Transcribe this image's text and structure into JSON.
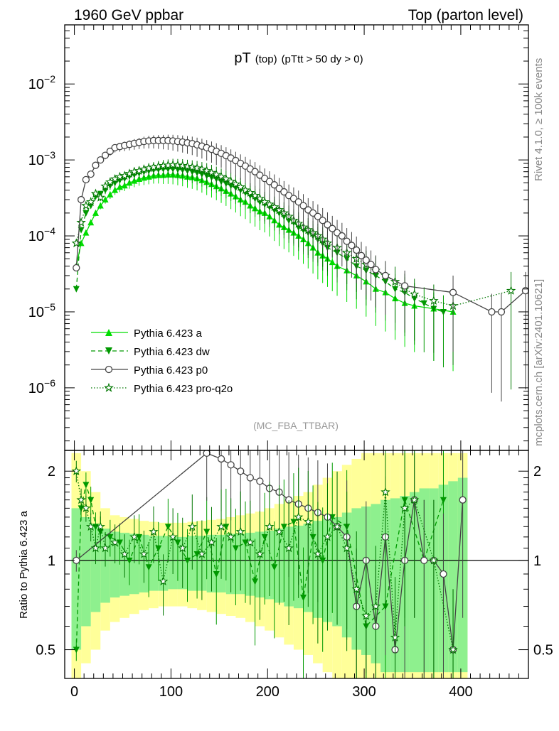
{
  "header": {
    "left": "1960 GeV ppbar",
    "right": "Top (parton level)"
  },
  "side_text": {
    "rivet": "Rivet 4.1.0, ≥ 100k events",
    "mcplots": "mcplots.cern.ch [arXiv:2401.10621]"
  },
  "colors": {
    "p_a": "#00dd00",
    "p_dw": "#009900",
    "p_p0": "#444444",
    "p_q2o": "#007700",
    "band_inner": "#8ef08e",
    "band_outer": "#ffff99"
  },
  "chart_data": [
    {
      "type": "line",
      "title": "pT (top) (pTtt > 50 dy > 0)",
      "title_parts": {
        "main": "pT",
        "sub": "(top)",
        "cut": "(pTtt > 50 dy > 0)"
      },
      "analysis_label": "(MC_FBA_TTBAR)",
      "xlabel": "",
      "ylabel": "",
      "y_scale": "log",
      "xlim": [
        -10,
        470
      ],
      "ylim": [
        1.5e-07,
        0.06
      ],
      "y_ticks": [
        {
          "value": 1e-06,
          "label_base": "10",
          "label_exp": "−6"
        },
        {
          "value": 1e-05,
          "label_base": "10",
          "label_exp": "−5"
        },
        {
          "value": 0.0001,
          "label_base": "10",
          "label_exp": "−4"
        },
        {
          "value": 0.001,
          "label_base": "10",
          "label_exp": "−3"
        },
        {
          "value": 0.01,
          "label_base": "10",
          "label_exp": "−2"
        }
      ],
      "legend_position": "lower-left",
      "series": [
        {
          "name": "Pythia 6.423 a",
          "style": "a",
          "x": [
            2,
            7,
            12,
            17,
            22,
            27,
            32,
            37,
            42,
            47,
            52,
            57,
            62,
            67,
            72,
            77,
            82,
            87,
            92,
            97,
            102,
            107,
            112,
            117,
            122,
            127,
            132,
            137,
            142,
            147,
            152,
            157,
            162,
            167,
            172,
            177,
            182,
            187,
            192,
            197,
            202,
            207,
            212,
            217,
            222,
            227,
            232,
            237,
            242,
            247,
            252,
            257,
            262,
            267,
            272,
            282,
            292,
            302,
            312,
            322,
            332,
            342,
            352,
            372,
            392
          ],
          "y": [
            4e-05,
            8e-05,
            0.00011,
            0.00015,
            0.0002,
            0.00025,
            0.0003,
            0.00035,
            0.0004,
            0.00044,
            0.00046,
            0.0005,
            0.00053,
            0.00056,
            0.00058,
            0.0006,
            0.00062,
            0.00063,
            0.00063,
            0.00064,
            0.00064,
            0.00063,
            0.00062,
            0.0006,
            0.00059,
            0.00057,
            0.00054,
            0.00051,
            0.00048,
            0.00045,
            0.00042,
            0.00039,
            0.00036,
            0.00033,
            0.0003,
            0.00028,
            0.00025,
            0.00023,
            0.00021,
            0.0002,
            0.00018,
            0.00016,
            0.00014,
            0.00013,
            0.00012,
            0.00011,
            0.0001,
            9e-05,
            8e-05,
            7e-05,
            6e-05,
            5.5e-05,
            5e-05,
            4.5e-05,
            4e-05,
            3.5e-05,
            3e-05,
            2.5e-05,
            2e-05,
            1.8e-05,
            1.5e-05,
            1.3e-05,
            1.2e-05,
            1.1e-05,
            1e-05
          ]
        },
        {
          "name": "Pythia 6.423 dw",
          "style": "dw",
          "x": [
            2,
            7,
            12,
            17,
            22,
            27,
            32,
            37,
            42,
            47,
            52,
            57,
            62,
            67,
            72,
            77,
            82,
            87,
            92,
            97,
            102,
            107,
            112,
            117,
            122,
            127,
            132,
            137,
            142,
            147,
            152,
            157,
            162,
            167,
            172,
            177,
            182,
            187,
            192,
            197,
            202,
            207,
            212,
            217,
            222,
            227,
            232,
            237,
            242,
            247,
            252,
            257,
            262,
            272,
            282,
            292,
            302,
            312,
            322,
            332,
            342,
            352,
            362,
            372,
            382
          ],
          "y": [
            2e-05,
            0.00012,
            0.0002,
            0.00025,
            0.00033,
            0.00036,
            0.0004,
            0.00046,
            0.0005,
            0.00054,
            0.00057,
            0.00061,
            0.00064,
            0.00067,
            0.0007,
            0.00072,
            0.00074,
            0.00075,
            0.00076,
            0.00076,
            0.00076,
            0.00075,
            0.00074,
            0.00072,
            0.0007,
            0.00068,
            0.00065,
            0.00062,
            0.00059,
            0.00056,
            0.00052,
            0.00049,
            0.00046,
            0.00043,
            0.0004,
            0.00037,
            0.00034,
            0.00031,
            0.00028,
            0.00026,
            0.00024,
            0.00022,
            0.0002,
            0.00018,
            0.00016,
            0.00015,
            0.00013,
            0.00012,
            0.00011,
            0.0001,
            9e-05,
            8e-05,
            7e-05,
            6e-05,
            5e-05,
            4e-05,
            3.5e-05,
            3e-05,
            2.5e-05,
            2e-05,
            1.8e-05,
            1.5e-05,
            1.3e-05,
            1.1e-05,
            1e-05
          ]
        },
        {
          "name": "Pythia 6.423 p0",
          "style": "p0",
          "x": [
            2,
            7,
            12,
            17,
            22,
            27,
            32,
            37,
            42,
            47,
            52,
            57,
            62,
            67,
            72,
            77,
            82,
            87,
            92,
            97,
            102,
            107,
            112,
            117,
            122,
            127,
            132,
            137,
            142,
            147,
            152,
            157,
            162,
            167,
            172,
            177,
            182,
            187,
            192,
            197,
            202,
            207,
            212,
            217,
            222,
            227,
            232,
            237,
            242,
            247,
            252,
            257,
            262,
            267,
            272,
            277,
            282,
            287,
            292,
            297,
            302,
            307,
            312,
            322,
            342,
            392,
            432,
            442,
            467
          ],
          "y": [
            3.8e-05,
            0.0003,
            0.00055,
            0.00065,
            0.00085,
            0.001,
            0.00115,
            0.0013,
            0.00145,
            0.0015,
            0.00155,
            0.0016,
            0.00165,
            0.0017,
            0.00175,
            0.00178,
            0.0018,
            0.0018,
            0.0018,
            0.0018,
            0.00178,
            0.00175,
            0.00172,
            0.00168,
            0.00164,
            0.00158,
            0.00152,
            0.00145,
            0.00138,
            0.0013,
            0.00122,
            0.00114,
            0.00106,
            0.00098,
            0.0009,
            0.00083,
            0.00076,
            0.0007,
            0.00063,
            0.00057,
            0.00052,
            0.00047,
            0.00042,
            0.00038,
            0.00034,
            0.00031,
            0.00028,
            0.00025,
            0.00022,
            0.0002,
            0.00018,
            0.00016,
            0.00014,
            0.000125,
            0.00011,
            0.0001,
            8.5e-05,
            7.5e-05,
            6.5e-05,
            5.5e-05,
            4.8e-05,
            4.2e-05,
            3.6e-05,
            3e-05,
            2.2e-05,
            1.8e-05,
            1e-05,
            1e-05,
            1.9e-05
          ]
        },
        {
          "name": "Pythia 6.423 pro-q2o",
          "style": "q2o",
          "x": [
            2,
            7,
            12,
            17,
            22,
            27,
            32,
            37,
            42,
            47,
            52,
            57,
            62,
            67,
            72,
            77,
            82,
            87,
            92,
            97,
            102,
            107,
            112,
            117,
            122,
            127,
            132,
            137,
            142,
            147,
            152,
            157,
            162,
            167,
            172,
            177,
            182,
            187,
            192,
            197,
            202,
            207,
            212,
            217,
            222,
            227,
            232,
            237,
            242,
            247,
            252,
            257,
            262,
            272,
            282,
            292,
            302,
            312,
            322,
            332,
            342,
            352,
            372,
            392,
            452
          ],
          "y": [
            8e-05,
            0.00015,
            0.00025,
            0.00028,
            0.00036,
            0.00032,
            0.00045,
            0.00051,
            0.00056,
            0.0006,
            0.00062,
            0.00066,
            0.0007,
            0.00072,
            0.00075,
            0.00078,
            0.0008,
            0.00082,
            0.00084,
            0.00085,
            0.00086,
            0.00085,
            0.00084,
            0.00082,
            0.0008,
            0.00078,
            0.00075,
            0.00072,
            0.00068,
            0.00064,
            0.0006,
            0.00056,
            0.00052,
            0.00048,
            0.00044,
            0.0004,
            0.00037,
            0.00034,
            0.00031,
            0.00028,
            0.00026,
            0.00024,
            0.00022,
            0.0002,
            0.00018,
            0.00016,
            0.000145,
            0.00013,
            0.00012,
            0.00011,
            0.0001,
            9e-05,
            8e-05,
            7e-05,
            6e-05,
            5e-05,
            4.2e-05,
            3.5e-05,
            3e-05,
            2.5e-05,
            2e-05,
            1.7e-05,
            1.4e-05,
            1.2e-05,
            1.9e-05
          ]
        }
      ]
    },
    {
      "type": "line",
      "title": "",
      "ylabel": "Ratio to Pythia 6.423 a",
      "xlabel": "",
      "y_scale": "log",
      "xlim": [
        -10,
        470
      ],
      "ylim": [
        0.4,
        2.35
      ],
      "x_ticks": [
        0,
        100,
        200,
        300,
        400
      ],
      "y_ticks": [
        0.5,
        1,
        2
      ],
      "y_tick_labels": [
        "0.5",
        "1",
        "2"
      ],
      "reference_line": 1,
      "band": {
        "x": [
          2,
          12,
          22,
          32,
          42,
          52,
          62,
          72,
          82,
          92,
          102,
          112,
          122,
          132,
          142,
          152,
          162,
          172,
          182,
          192,
          202,
          212,
          222,
          232,
          242,
          252,
          262,
          272,
          282,
          292,
          302,
          312,
          322,
          332,
          342,
          352,
          362,
          372,
          382,
          392,
          402
        ],
        "inner_low": [
          0.5,
          0.6,
          0.67,
          0.72,
          0.75,
          0.76,
          0.77,
          0.78,
          0.79,
          0.79,
          0.8,
          0.8,
          0.79,
          0.79,
          0.78,
          0.78,
          0.77,
          0.77,
          0.76,
          0.75,
          0.74,
          0.72,
          0.7,
          0.69,
          0.67,
          0.64,
          0.62,
          0.6,
          0.55,
          0.5,
          0.48,
          0.45,
          0.42,
          0.42,
          0.42,
          0.42,
          0.42,
          0.42,
          0.42,
          0.42,
          0.42
        ],
        "inner_high": [
          1.5,
          1.4,
          1.33,
          1.28,
          1.25,
          1.24,
          1.23,
          1.22,
          1.21,
          1.21,
          1.2,
          1.2,
          1.21,
          1.21,
          1.22,
          1.22,
          1.23,
          1.23,
          1.24,
          1.25,
          1.26,
          1.28,
          1.3,
          1.31,
          1.33,
          1.36,
          1.38,
          1.4,
          1.45,
          1.5,
          1.52,
          1.55,
          1.6,
          1.62,
          1.65,
          1.7,
          1.75,
          1.75,
          1.8,
          1.85,
          1.9
        ],
        "outer_low": [
          0.4,
          0.45,
          0.5,
          0.58,
          0.62,
          0.64,
          0.66,
          0.68,
          0.69,
          0.7,
          0.7,
          0.7,
          0.69,
          0.68,
          0.67,
          0.66,
          0.65,
          0.64,
          0.62,
          0.6,
          0.58,
          0.55,
          0.52,
          0.5,
          0.48,
          0.45,
          0.42,
          0.4,
          0.4,
          0.4,
          0.4,
          0.4,
          0.4,
          0.4,
          0.4,
          0.4,
          0.4,
          0.4,
          0.4,
          0.4,
          0.4
        ],
        "outer_high": [
          2.3,
          2.0,
          1.7,
          1.5,
          1.42,
          1.4,
          1.38,
          1.36,
          1.35,
          1.34,
          1.34,
          1.34,
          1.35,
          1.36,
          1.37,
          1.38,
          1.4,
          1.42,
          1.44,
          1.46,
          1.5,
          1.55,
          1.6,
          1.65,
          1.7,
          1.8,
          1.9,
          2.0,
          2.1,
          2.2,
          2.3,
          2.3,
          2.3,
          2.3,
          2.3,
          2.3,
          2.3,
          2.3,
          2.3,
          2.3,
          2.3
        ]
      },
      "series": [
        {
          "name": "Pythia 6.423 dw",
          "style": "dw",
          "x": [
            2,
            7,
            12,
            17,
            22,
            27,
            37,
            47,
            57,
            67,
            77,
            87,
            97,
            107,
            117,
            127,
            137,
            147,
            157,
            167,
            177,
            187,
            197,
            207,
            217,
            227,
            237,
            247,
            257,
            267,
            282,
            302,
            322,
            342,
            362,
            382
          ],
          "y": [
            0.5,
            1.5,
            1.8,
            1.6,
            1.3,
            1.25,
            1.2,
            1.15,
            1.0,
            1.2,
            0.95,
            1.1,
            1.3,
            1.15,
            1.0,
            1.05,
            1.25,
            0.9,
            1.3,
            1.1,
            1.15,
            0.85,
            1.2,
            0.95,
            1.3,
            1.35,
            0.75,
            1.2,
            1.0,
            1.4,
            1.3,
            0.6,
            0.7,
            1.6,
            1.0,
            1.6
          ]
        },
        {
          "name": "Pythia 6.423 p0",
          "style": "p0",
          "x": [
            2,
            137,
            152,
            162,
            172,
            182,
            192,
            202,
            212,
            222,
            232,
            242,
            252,
            262,
            272,
            282,
            292,
            302,
            312,
            322,
            332,
            342,
            352,
            362,
            372,
            382,
            392,
            402
          ],
          "y": [
            1.0,
            2.3,
            2.2,
            2.1,
            2.0,
            1.9,
            1.85,
            1.75,
            1.7,
            1.6,
            1.55,
            1.5,
            1.45,
            1.4,
            1.3,
            1.2,
            0.7,
            1.0,
            0.6,
            1.2,
            0.5,
            1.0,
            1.6,
            1.0,
            1.0,
            0.9,
            0.5,
            1.6
          ]
        },
        {
          "name": "Pythia 6.423 pro-q2o",
          "style": "q2o",
          "x": [
            2,
            7,
            12,
            17,
            22,
            27,
            32,
            42,
            52,
            62,
            72,
            82,
            92,
            102,
            112,
            122,
            132,
            142,
            152,
            162,
            172,
            182,
            192,
            202,
            212,
            222,
            232,
            242,
            252,
            262,
            272,
            282,
            292,
            302,
            312,
            322,
            332,
            342,
            352,
            372,
            392
          ],
          "y": [
            2.0,
            1.6,
            1.5,
            1.3,
            1.1,
            1.3,
            1.1,
            1.15,
            1.05,
            1.2,
            1.05,
            1.25,
            0.85,
            1.2,
            1.1,
            1.3,
            1.05,
            1.15,
            1.3,
            1.2,
            1.25,
            1.15,
            1.05,
            1.3,
            1.25,
            1.1,
            1.4,
            1.35,
            1.05,
            1.2,
            1.3,
            1.1,
            0.8,
            0.65,
            0.7,
            1.7,
            0.55,
            1.5,
            1.6,
            1.0,
            0.5
          ]
        }
      ]
    }
  ]
}
